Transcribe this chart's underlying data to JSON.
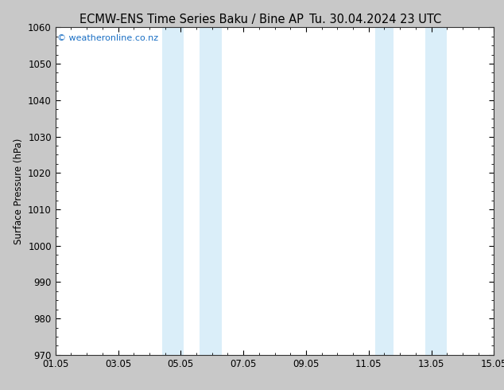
{
  "title_left": "ECMW-ENS Time Series Baku / Bine AP",
  "title_right": "Tu. 30.04.2024 23 UTC",
  "ylabel": "Surface Pressure (hPa)",
  "ylim": [
    970,
    1060
  ],
  "yticks": [
    970,
    980,
    990,
    1000,
    1010,
    1020,
    1030,
    1040,
    1050,
    1060
  ],
  "xlim_start": 0,
  "xlim_end": 14,
  "xtick_positions": [
    0,
    2,
    4,
    6,
    8,
    10,
    12,
    14
  ],
  "xtick_labels": [
    "01.05",
    "03.05",
    "05.05",
    "07.05",
    "09.05",
    "11.05",
    "13.05",
    "15.05"
  ],
  "shaded_bands": [
    {
      "xmin": 3.4,
      "xmax": 4.1
    },
    {
      "xmin": 4.6,
      "xmax": 5.3
    },
    {
      "xmin": 10.2,
      "xmax": 10.8
    },
    {
      "xmin": 11.8,
      "xmax": 12.5
    }
  ],
  "shade_color": "#daeef9",
  "watermark": "© weatheronline.co.nz",
  "watermark_color": "#1a6fc4",
  "watermark_fontsize": 8,
  "background_color": "#ffffff",
  "plot_bg_color": "#ffffff",
  "title_fontsize": 10.5,
  "axis_label_fontsize": 8.5,
  "tick_fontsize": 8.5,
  "spine_color": "#333333",
  "fig_bg_color": "#c8c8c8"
}
